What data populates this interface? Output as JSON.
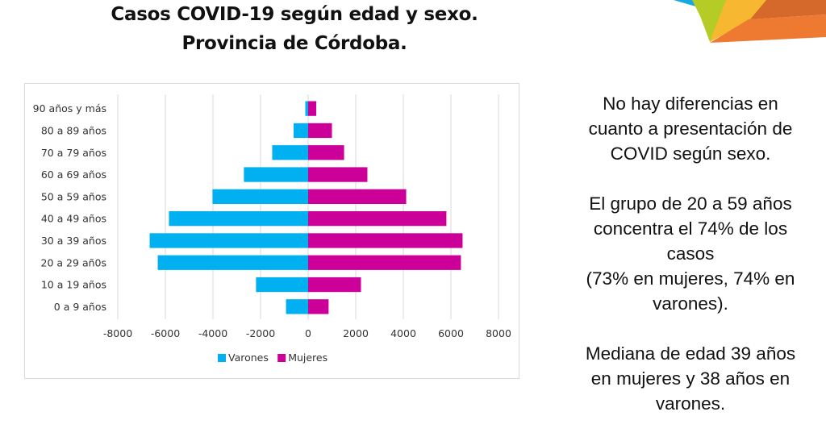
{
  "slide": {
    "title_lines": [
      "Casos COVID-19 según edad y sexo.",
      "Provincia de Córdoba."
    ],
    "notes": [
      {
        "lines": [
          "No hay diferencias en",
          "cuanto a presentación  de",
          "COVID según sexo."
        ]
      },
      {
        "lines": [
          "El grupo de 20 a 59 años",
          "concentra el 74% de los",
          "casos",
          "(73% en mujeres, 74% en",
          "varones)."
        ]
      },
      {
        "lines": [
          "Mediana de edad 39 años",
          "en mujeres y 38 años en",
          "varones."
        ]
      }
    ],
    "logo": {
      "icon": "decorative-geometric-logo-icon",
      "colors": [
        "#1aa8e0",
        "#b5cc26",
        "#f7b731",
        "#d9672e",
        "#ee7a32"
      ]
    }
  },
  "chart_data": {
    "type": "bar",
    "orientation": "horizontal",
    "subtype": "population-pyramid",
    "title": "",
    "xlabel": "",
    "ylabel": "",
    "categories": [
      "0 a 9 años",
      "10 a 19 años",
      "20 a 29 añ0s",
      "30 a 39 años",
      "40 a 49 años",
      "50 a 59 años",
      "60 a 69 años",
      "70 a 79 años",
      "80 a 89 años",
      "90 años y más"
    ],
    "series": [
      {
        "name": "Varones",
        "color": "#00b0f0",
        "values": [
          -930,
          -2190,
          -6320,
          -6660,
          -5850,
          -4020,
          -2700,
          -1510,
          -610,
          -120
        ]
      },
      {
        "name": "Mujeres",
        "color": "#cc0099",
        "values": [
          860,
          2220,
          6420,
          6490,
          5810,
          4120,
          2490,
          1510,
          1000,
          340
        ]
      }
    ],
    "xlim": [
      -8000,
      8000
    ],
    "x_ticks": [
      -8000,
      -6000,
      -4000,
      -2000,
      0,
      2000,
      4000,
      6000,
      8000
    ],
    "x_tick_labels": [
      "-8000",
      "-6000",
      "-4000",
      "-2000",
      "0",
      "2000",
      "4000",
      "6000",
      "8000"
    ],
    "grid": "vertical",
    "legend": {
      "position": "bottom",
      "entries": [
        "Varones",
        "Mujeres"
      ]
    }
  }
}
